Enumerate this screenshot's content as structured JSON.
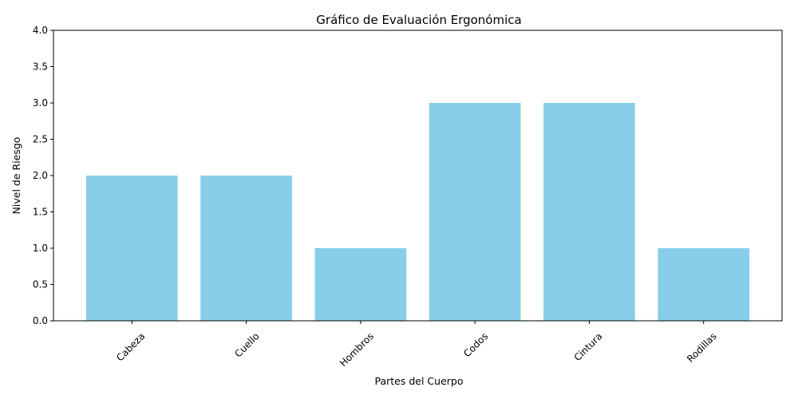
{
  "chart_data": {
    "type": "bar",
    "title": "Gráfico de Evaluación Ergonómica",
    "xlabel": "Partes del Cuerpo",
    "ylabel": "Nivel de Riesgo",
    "categories": [
      "Cabeza",
      "Cuello",
      "Hombros",
      "Codos",
      "Cintura",
      "Rodillas"
    ],
    "values": [
      2,
      2,
      1,
      3,
      3,
      1
    ],
    "ylim": [
      0,
      4
    ],
    "yticks": [
      "0.0",
      "0.5",
      "1.0",
      "1.5",
      "2.0",
      "2.5",
      "3.0",
      "3.5",
      "4.0"
    ],
    "bar_color": "#87CEEB",
    "grid": false,
    "legend": "none"
  }
}
